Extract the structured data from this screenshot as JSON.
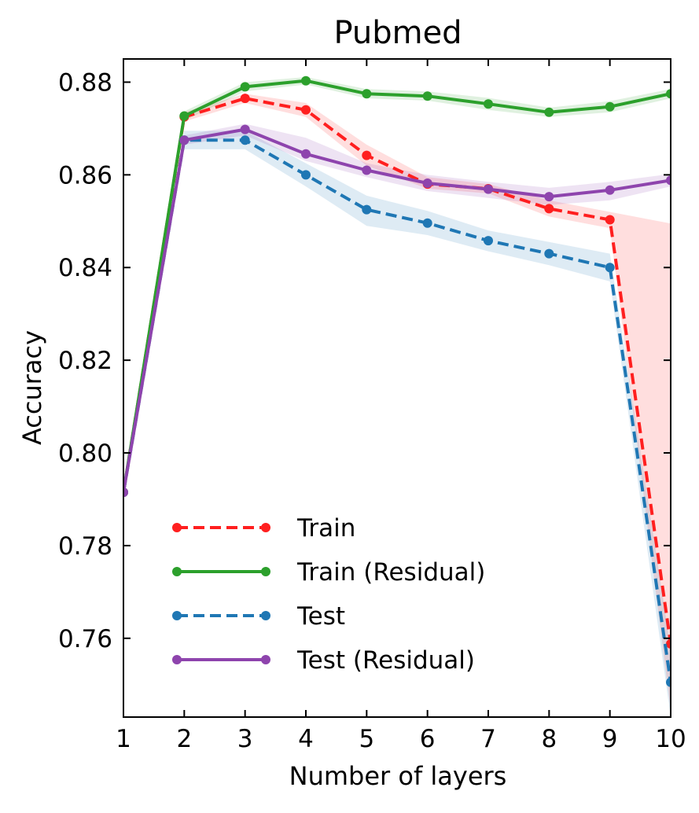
{
  "chart_data": {
    "type": "line",
    "title": "Pubmed",
    "xlabel": "Number of layers",
    "ylabel": "Accuracy",
    "xlim": [
      1,
      10
    ],
    "ylim": [
      0.743,
      0.885
    ],
    "xticks": [
      1,
      2,
      3,
      4,
      5,
      6,
      7,
      8,
      9,
      10
    ],
    "xtick_labels": [
      "1",
      "2",
      "3",
      "4",
      "5",
      "6",
      "7",
      "8",
      "9",
      "10"
    ],
    "yticks": [
      0.76,
      0.78,
      0.8,
      0.82,
      0.84,
      0.86,
      0.88
    ],
    "ytick_labels": [
      "0.76",
      "0.78",
      "0.80",
      "0.82",
      "0.84",
      "0.86",
      "0.88"
    ],
    "grid": false,
    "legend_position": "lower-left",
    "x": [
      1,
      2,
      3,
      4,
      5,
      6,
      7,
      8,
      9,
      10
    ],
    "series": [
      {
        "name": "Train",
        "color": "#ff1f1f",
        "linestyle": "dashed",
        "values": [
          0.7915,
          0.8725,
          0.8765,
          0.874,
          0.8642,
          0.858,
          0.857,
          0.8527,
          0.8503,
          0.7588
        ],
        "band_lower": [
          0.7905,
          0.8715,
          0.8755,
          0.8725,
          0.862,
          0.857,
          0.856,
          0.851,
          0.8485,
          0.7445
        ],
        "band_upper": [
          0.7925,
          0.8735,
          0.8775,
          0.8755,
          0.8665,
          0.8595,
          0.858,
          0.8545,
          0.852,
          0.8495
        ]
      },
      {
        "name": "Train (Residual)",
        "color": "#2ca02c",
        "linestyle": "solid",
        "values": [
          0.7915,
          0.8727,
          0.879,
          0.8803,
          0.8775,
          0.877,
          0.8753,
          0.8735,
          0.8747,
          0.8775
        ],
        "band_lower": [
          0.7905,
          0.8717,
          0.878,
          0.8795,
          0.8765,
          0.876,
          0.874,
          0.8725,
          0.8735,
          0.8765
        ],
        "band_upper": [
          0.7925,
          0.8737,
          0.88,
          0.8811,
          0.8785,
          0.878,
          0.8766,
          0.8745,
          0.8759,
          0.8785
        ]
      },
      {
        "name": "Test",
        "color": "#1f77b4",
        "linestyle": "dashed",
        "values": [
          0.7915,
          0.8675,
          0.8675,
          0.86,
          0.8525,
          0.8496,
          0.8458,
          0.843,
          0.84,
          0.7505
        ],
        "band_lower": [
          0.7905,
          0.8655,
          0.8655,
          0.8575,
          0.849,
          0.847,
          0.8435,
          0.8405,
          0.837,
          0.743
        ],
        "band_upper": [
          0.7925,
          0.8695,
          0.8695,
          0.8625,
          0.8555,
          0.8522,
          0.848,
          0.8455,
          0.843,
          0.758
        ]
      },
      {
        "name": "Test (Residual)",
        "color": "#8e44ad",
        "linestyle": "solid",
        "values": [
          0.7915,
          0.8675,
          0.8698,
          0.8645,
          0.861,
          0.8582,
          0.8569,
          0.8553,
          0.8567,
          0.8588
        ],
        "band_lower": [
          0.7905,
          0.8665,
          0.8685,
          0.863,
          0.8595,
          0.8565,
          0.855,
          0.8535,
          0.8545,
          0.8575
        ],
        "band_upper": [
          0.7925,
          0.8685,
          0.871,
          0.868,
          0.8625,
          0.86,
          0.8585,
          0.8572,
          0.8585,
          0.8602
        ]
      }
    ]
  }
}
